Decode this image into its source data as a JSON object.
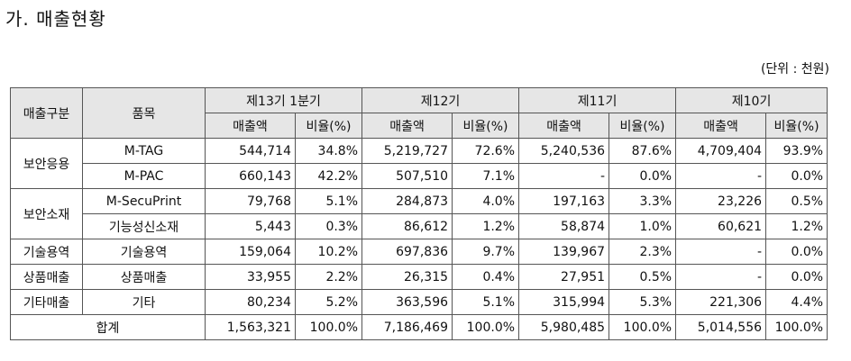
{
  "heading": "가. 매출현황",
  "unit": "(단위 : 천원)",
  "columns": {
    "category": "매출구분",
    "item": "품목",
    "periods": [
      "제13기 1분기",
      "제12기",
      "제11기",
      "제10기"
    ],
    "sales": "매출액",
    "ratio": "비율(%)"
  },
  "groups": [
    {
      "category": "보안응용",
      "rows": [
        {
          "item": "M-TAG",
          "values": [
            "544,714",
            "34.8%",
            "5,219,727",
            "72.6%",
            "5,240,536",
            "87.6%",
            "4,709,404",
            "93.9%"
          ]
        },
        {
          "item": "M-PAC",
          "values": [
            "660,143",
            "42.2%",
            "507,510",
            "7.1%",
            "-",
            "0.0%",
            "-",
            "0.0%"
          ]
        }
      ]
    },
    {
      "category": "보안소재",
      "rows": [
        {
          "item": "M-SecuPrint",
          "values": [
            "79,768",
            "5.1%",
            "284,873",
            "4.0%",
            "197,163",
            "3.3%",
            "23,226",
            "0.5%"
          ]
        },
        {
          "item": "기능성신소재",
          "values": [
            "5,443",
            "0.3%",
            "86,612",
            "1.2%",
            "58,874",
            "1.0%",
            "60,621",
            "1.2%"
          ]
        }
      ]
    },
    {
      "category": "기술용역",
      "rows": [
        {
          "item": "기술용역",
          "values": [
            "159,064",
            "10.2%",
            "697,836",
            "9.7%",
            "139,967",
            "2.3%",
            "-",
            "0.0%"
          ]
        }
      ]
    },
    {
      "category": "상품매출",
      "rows": [
        {
          "item": "상품매출",
          "values": [
            "33,955",
            "2.2%",
            "26,315",
            "0.4%",
            "27,951",
            "0.5%",
            "-",
            "0.0%"
          ]
        }
      ]
    },
    {
      "category": "기타매출",
      "rows": [
        {
          "item": "기타",
          "values": [
            "80,234",
            "5.2%",
            "363,596",
            "5.1%",
            "315,994",
            "5.3%",
            "221,306",
            "4.4%"
          ]
        }
      ]
    }
  ],
  "total": {
    "label": "합계",
    "values": [
      "1,563,321",
      "100.0%",
      "7,186,469",
      "100.0%",
      "5,980,485",
      "100.0%",
      "5,014,556",
      "100.0%"
    ]
  }
}
